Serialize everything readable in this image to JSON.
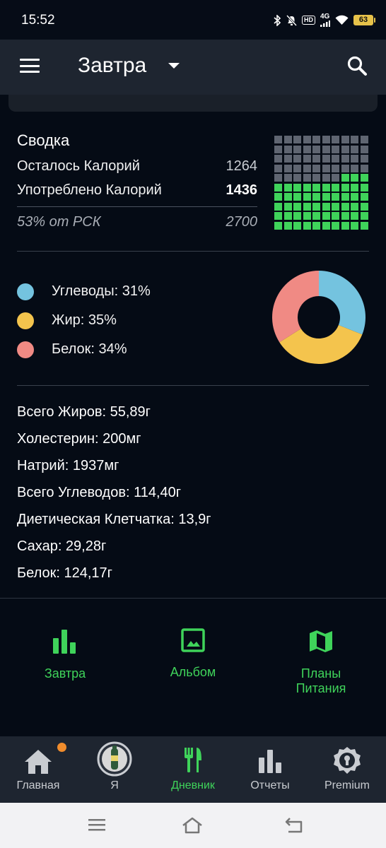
{
  "status_bar": {
    "time": "15:52",
    "network": "4G",
    "hd": "HD",
    "battery": "63"
  },
  "app_bar": {
    "title": "Завтра"
  },
  "summary": {
    "title": "Сводка",
    "remaining_label": "Осталось Калорий",
    "remaining_value": "1264",
    "consumed_label": "Употреблено Калорий",
    "consumed_value": "1436",
    "rsk_label": "53% от РСК",
    "rsk_value": "2700",
    "waffle_filled": 53,
    "waffle_total": 100
  },
  "macros": [
    {
      "label": "Углеводы: 31%",
      "percent": 31,
      "color": "#74c3df"
    },
    {
      "label": "Жир: 35%",
      "percent": 35,
      "color": "#f4c44d"
    },
    {
      "label": "Белок: 34%",
      "percent": 34,
      "color": "#f08a84"
    }
  ],
  "nutrients": [
    "Всего Жиров: 55,89г",
    "Холестерин: 200мг",
    "Натрий: 1937мг",
    "Всего Углеводов: 114,40г",
    "Диетическая Клетчатка: 13,9г",
    "Сахар: 29,28г",
    "Белок: 124,17г"
  ],
  "quick_actions": {
    "stats": "Завтра",
    "album": "Альбом",
    "plans_line1": "Планы",
    "plans_line2": "Питания"
  },
  "bottom_nav": {
    "home": "Главная",
    "me": "Я",
    "diary": "Дневник",
    "reports": "Отчеты",
    "premium": "Premium"
  },
  "colors": {
    "accent": "#3fd35a",
    "background": "#050b15",
    "bar": "#1e2530"
  }
}
